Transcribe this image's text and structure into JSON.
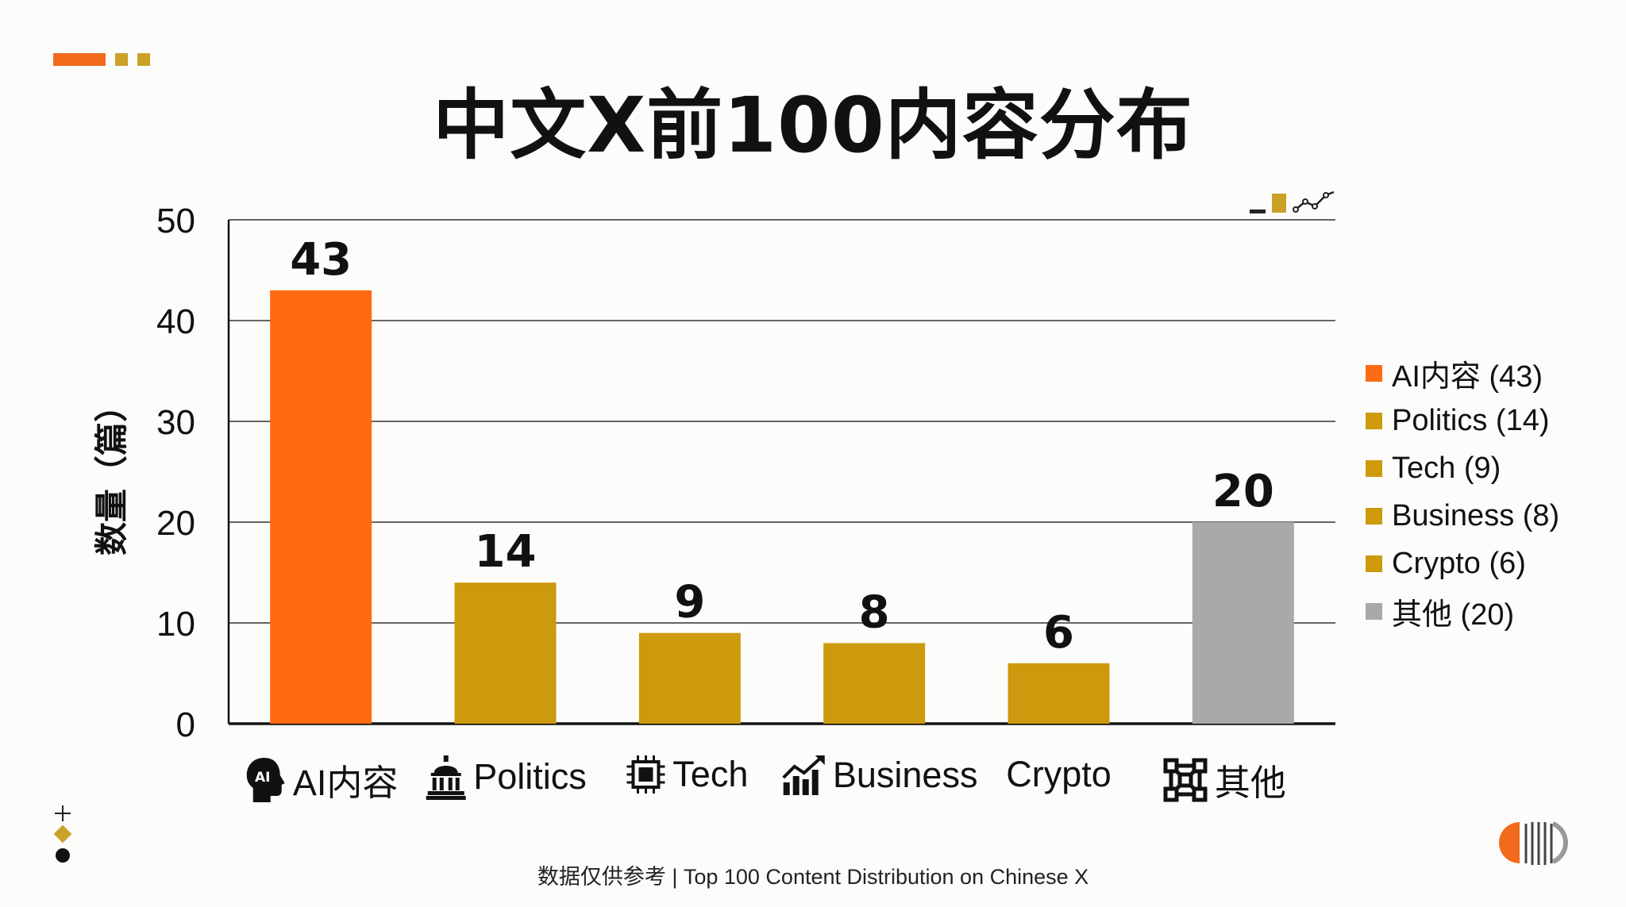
{
  "title": "中文X前100内容分布",
  "footer": "数据仅供参考 | Top 100 Content Distribution on Chinese X",
  "colors": {
    "ai": "#ff6a13",
    "gold": "#cc9a0c",
    "other": "#a9a9a9",
    "accent": "#f26b1d"
  },
  "chart_data": {
    "type": "bar",
    "categories": [
      "AI内容",
      "Politics",
      "Tech",
      "Business",
      "Crypto",
      "其他"
    ],
    "values": [
      43,
      14,
      9,
      8,
      6,
      20
    ],
    "bar_colors": [
      "#ff6a13",
      "#cc9a0c",
      "#cc9a0c",
      "#cc9a0c",
      "#cc9a0c",
      "#a9a9a9"
    ],
    "category_icons": [
      "ai-head-icon",
      "capitol-icon",
      "chip-icon",
      "growth-chart-icon",
      "",
      "network-icon"
    ],
    "title": "中文X前100内容分布",
    "xlabel": "",
    "ylabel": "数量（篇）",
    "ylim": [
      0,
      50
    ],
    "yticks": [
      0,
      10,
      20,
      30,
      40,
      50
    ],
    "grid": true,
    "legend_position": "right",
    "legend": [
      {
        "label": "AI内容 (43)",
        "color": "#ff6a13"
      },
      {
        "label": "Politics (14)",
        "color": "#cc9a0c"
      },
      {
        "label": "Tech (9)",
        "color": "#cc9a0c"
      },
      {
        "label": "Business (8)",
        "color": "#cc9a0c"
      },
      {
        "label": "Crypto (6)",
        "color": "#cc9a0c"
      },
      {
        "label": "其他 (20)",
        "color": "#a9a9a9"
      }
    ]
  }
}
